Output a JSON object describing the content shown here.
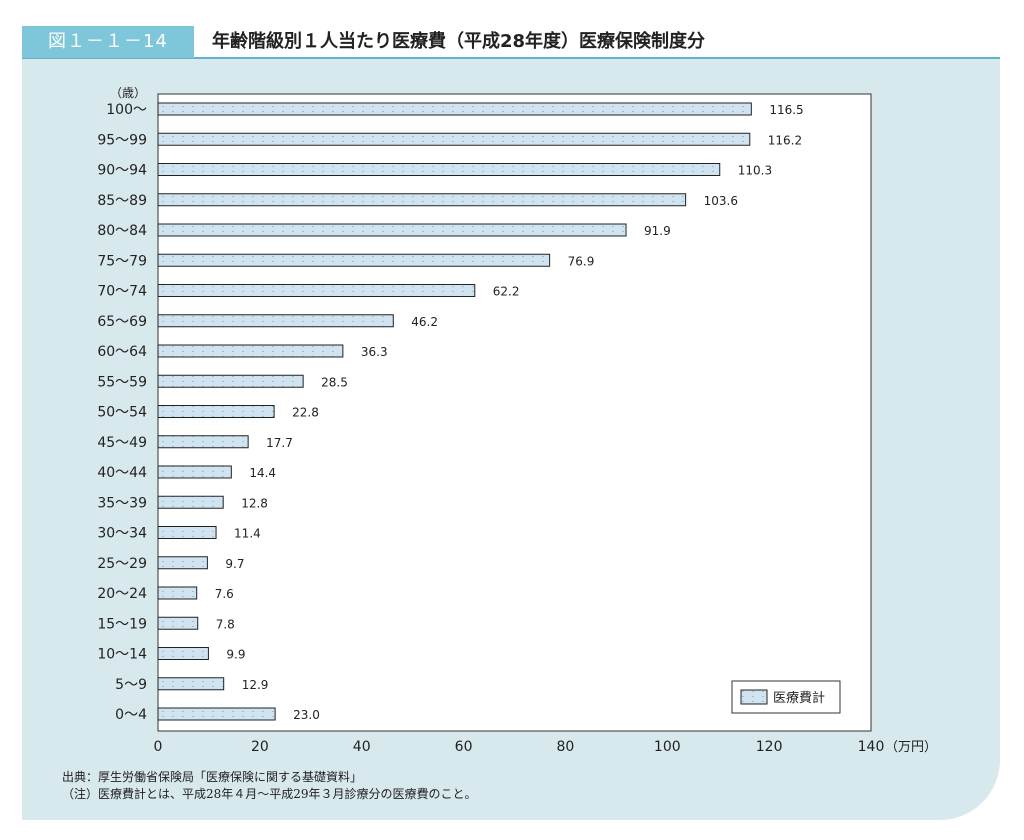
{
  "header": {
    "figure_number": "図１－１－14",
    "title": "年齢階級別１人当たり医療費（平成28年度）医療保険制度分"
  },
  "colors": {
    "panel_background": "#d8e9ee",
    "header_tab": "#7ec6d9",
    "header_line": "#5fb3cb",
    "bar_fill": "#cfe3f0",
    "bar_stroke": "#222222"
  },
  "chart_data": {
    "type": "bar",
    "orientation": "horizontal",
    "y_unit_label": "（歳）",
    "x_unit_label": "（万円）",
    "categories": [
      "100～",
      "95～99",
      "90～94",
      "85～89",
      "80～84",
      "75～79",
      "70～74",
      "65～69",
      "60～64",
      "55～59",
      "50～54",
      "45～49",
      "40～44",
      "35～39",
      "30～34",
      "25～29",
      "20～24",
      "15～19",
      "10～14",
      "5～9",
      "0～4"
    ],
    "series": [
      {
        "name": "医療費計",
        "values": [
          116.5,
          116.2,
          110.3,
          103.6,
          91.9,
          76.9,
          62.2,
          46.2,
          36.3,
          28.5,
          22.8,
          17.7,
          14.4,
          12.8,
          11.4,
          9.7,
          7.6,
          7.8,
          9.9,
          12.9,
          23.0
        ],
        "labels": [
          "116.5",
          "116.2",
          "110.3",
          "103.6",
          "91.9",
          "76.9",
          "62.2",
          "46.2",
          "36.3",
          "28.5",
          "22.8",
          "17.7",
          "14.4",
          "12.8",
          "11.4",
          "9.7",
          "7.6",
          "7.8",
          "9.9",
          "12.9",
          "23.0"
        ]
      }
    ],
    "x_ticks": [
      0,
      20,
      40,
      60,
      80,
      100,
      120,
      140
    ],
    "xlim": [
      0,
      140
    ],
    "grid": false,
    "legend_position": "bottom-right",
    "fill_pattern": "dotted"
  },
  "footer": {
    "source": "出典：厚生労働省保険局「医療保険に関する基礎資料」",
    "note": "（注）医療費計とは、平成28年４月～平成29年３月診療分の医療費のこと。"
  }
}
